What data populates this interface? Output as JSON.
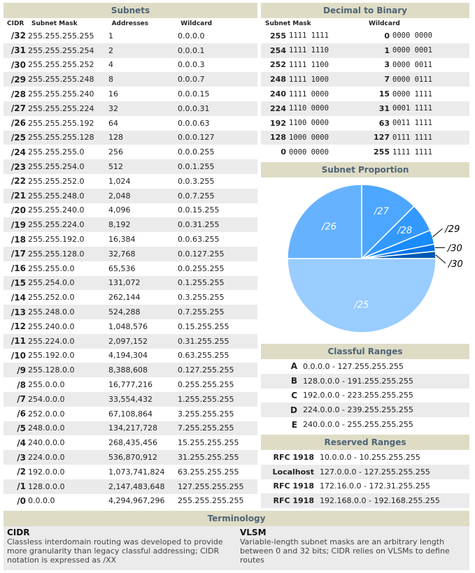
{
  "subnets": {
    "title": "Subnets",
    "headers": {
      "cidr": "CIDR",
      "mask": "Subnet Mask",
      "addresses": "Addresses",
      "wildcard": "Wildcard"
    },
    "rows": [
      {
        "cidr": "/32",
        "mask": "255.255.255.255",
        "addresses": "1",
        "wildcard": "0.0.0.0"
      },
      {
        "cidr": "/31",
        "mask": "255.255.255.254",
        "addresses": "2",
        "wildcard": "0.0.0.1"
      },
      {
        "cidr": "/30",
        "mask": "255.255.255.252",
        "addresses": "4",
        "wildcard": "0.0.0.3"
      },
      {
        "cidr": "/29",
        "mask": "255.255.255.248",
        "addresses": "8",
        "wildcard": "0.0.0.7"
      },
      {
        "cidr": "/28",
        "mask": "255.255.255.240",
        "addresses": "16",
        "wildcard": "0.0.0.15"
      },
      {
        "cidr": "/27",
        "mask": "255.255.255.224",
        "addresses": "32",
        "wildcard": "0.0.0.31"
      },
      {
        "cidr": "/26",
        "mask": "255.255.255.192",
        "addresses": "64",
        "wildcard": "0.0.0.63"
      },
      {
        "cidr": "/25",
        "mask": "255.255.255.128",
        "addresses": "128",
        "wildcard": "0.0.0.127"
      },
      {
        "cidr": "/24",
        "mask": "255.255.255.0",
        "addresses": "256",
        "wildcard": "0.0.0.255"
      },
      {
        "cidr": "/23",
        "mask": "255.255.254.0",
        "addresses": "512",
        "wildcard": "0.0.1.255"
      },
      {
        "cidr": "/22",
        "mask": "255.255.252.0",
        "addresses": "1,024",
        "wildcard": "0.0.3.255"
      },
      {
        "cidr": "/21",
        "mask": "255.255.248.0",
        "addresses": "2,048",
        "wildcard": "0.0.7.255"
      },
      {
        "cidr": "/20",
        "mask": "255.255.240.0",
        "addresses": "4,096",
        "wildcard": "0.0.15.255"
      },
      {
        "cidr": "/19",
        "mask": "255.255.224.0",
        "addresses": "8,192",
        "wildcard": "0.0.31.255"
      },
      {
        "cidr": "/18",
        "mask": "255.255.192.0",
        "addresses": "16,384",
        "wildcard": "0.0.63.255"
      },
      {
        "cidr": "/17",
        "mask": "255.255.128.0",
        "addresses": "32,768",
        "wildcard": "0.0.127.255"
      },
      {
        "cidr": "/16",
        "mask": "255.255.0.0",
        "addresses": "65,536",
        "wildcard": "0.0.255.255"
      },
      {
        "cidr": "/15",
        "mask": "255.254.0.0",
        "addresses": "131,072",
        "wildcard": "0.1.255.255"
      },
      {
        "cidr": "/14",
        "mask": "255.252.0.0",
        "addresses": "262,144",
        "wildcard": "0.3.255.255"
      },
      {
        "cidr": "/13",
        "mask": "255.248.0.0",
        "addresses": "524,288",
        "wildcard": "0.7.255.255"
      },
      {
        "cidr": "/12",
        "mask": "255.240.0.0",
        "addresses": "1,048,576",
        "wildcard": "0.15.255.255"
      },
      {
        "cidr": "/11",
        "mask": "255.224.0.0",
        "addresses": "2,097,152",
        "wildcard": "0.31.255.255"
      },
      {
        "cidr": "/10",
        "mask": "255.192.0.0",
        "addresses": "4,194,304",
        "wildcard": "0.63.255.255"
      },
      {
        "cidr": "/9",
        "mask": "255.128.0.0",
        "addresses": "8,388,608",
        "wildcard": "0.127.255.255"
      },
      {
        "cidr": "/8",
        "mask": "255.0.0.0",
        "addresses": "16,777,216",
        "wildcard": "0.255.255.255"
      },
      {
        "cidr": "/7",
        "mask": "254.0.0.0",
        "addresses": "33,554,432",
        "wildcard": "1.255.255.255"
      },
      {
        "cidr": "/6",
        "mask": "252.0.0.0",
        "addresses": "67,108,864",
        "wildcard": "3.255.255.255"
      },
      {
        "cidr": "/5",
        "mask": "248.0.0.0",
        "addresses": "134,217,728",
        "wildcard": "7.255.255.255"
      },
      {
        "cidr": "/4",
        "mask": "240.0.0.0",
        "addresses": "268,435,456",
        "wildcard": "15.255.255.255"
      },
      {
        "cidr": "/3",
        "mask": "224.0.0.0",
        "addresses": "536,870,912",
        "wildcard": "31.255.255.255"
      },
      {
        "cidr": "/2",
        "mask": "192.0.0.0",
        "addresses": "1,073,741,824",
        "wildcard": "63.255.255.255"
      },
      {
        "cidr": "/1",
        "mask": "128.0.0.0",
        "addresses": "2,147,483,648",
        "wildcard": "127.255.255.255"
      },
      {
        "cidr": "/0",
        "mask": "0.0.0.0",
        "addresses": "4,294,967,296",
        "wildcard": "255.255.255.255"
      }
    ]
  },
  "dec2bin": {
    "title": "Decimal to Binary",
    "headers": {
      "mask": "Subnet Mask",
      "wildcard": "Wildcard"
    },
    "rows": [
      {
        "mask_dec": "255",
        "mask_bin": "1111 1111",
        "wild_dec": "0",
        "wild_bin": "0000 0000"
      },
      {
        "mask_dec": "254",
        "mask_bin": "1111 1110",
        "wild_dec": "1",
        "wild_bin": "0000 0001"
      },
      {
        "mask_dec": "252",
        "mask_bin": "1111 1100",
        "wild_dec": "3",
        "wild_bin": "0000 0011"
      },
      {
        "mask_dec": "248",
        "mask_bin": "1111 1000",
        "wild_dec": "7",
        "wild_bin": "0000 0111"
      },
      {
        "mask_dec": "240",
        "mask_bin": "1111 0000",
        "wild_dec": "15",
        "wild_bin": "0000 1111"
      },
      {
        "mask_dec": "224",
        "mask_bin": "1110 0000",
        "wild_dec": "31",
        "wild_bin": "0001 1111"
      },
      {
        "mask_dec": "192",
        "mask_bin": "1100 0000",
        "wild_dec": "63",
        "wild_bin": "0011 1111"
      },
      {
        "mask_dec": "128",
        "mask_bin": "1000 0000",
        "wild_dec": "127",
        "wild_bin": "0111 1111"
      },
      {
        "mask_dec": "0",
        "mask_bin": "0000 0000",
        "wild_dec": "255",
        "wild_bin": "1111 1111"
      }
    ]
  },
  "proportion": {
    "title": "Subnet Proportion"
  },
  "chart_data": {
    "type": "pie",
    "title": "Subnet Proportion",
    "categories": [
      "/25",
      "/26",
      "/27",
      "/28",
      "/29",
      "/30",
      "/30"
    ],
    "values": [
      128,
      64,
      32,
      16,
      8,
      4,
      4
    ],
    "colors": [
      "#99ccff",
      "#66b2ff",
      "#4da6ff",
      "#3399ff",
      "#1a8cff",
      "#0073e6",
      "#0059b3"
    ]
  },
  "classful": {
    "title": "Classful Ranges",
    "rows": [
      {
        "label": "A",
        "range": "0.0.0.0 - 127.255.255.255"
      },
      {
        "label": "B",
        "range": "128.0.0.0 - 191.255.255.255"
      },
      {
        "label": "C",
        "range": "192.0.0.0 - 223.255.255.255"
      },
      {
        "label": "D",
        "range": "224.0.0.0 - 239.255.255.255"
      },
      {
        "label": "E",
        "range": "240.0.0.0 - 255.255.255.255"
      }
    ]
  },
  "reserved": {
    "title": "Reserved Ranges",
    "rows": [
      {
        "label": "RFC 1918",
        "range": "10.0.0.0 - 10.255.255.255"
      },
      {
        "label": "Localhost",
        "range": "127.0.0.0 - 127.255.255.255"
      },
      {
        "label": "RFC 1918",
        "range": "172.16.0.0 - 172.31.255.255"
      },
      {
        "label": "RFC 1918",
        "range": "192.168.0.0 - 192.168.255.255"
      }
    ]
  },
  "terminology": {
    "title": "Terminology",
    "cidr_title": "CIDR",
    "cidr_text": "Classless interdomain routing was developed to provide more granularity than legacy classful addressing; CIDR notation is expressed as /XX",
    "vlsm_title": "VLSM",
    "vlsm_text": "Variable-length subnet masks are an arbitrary length between 0 and 32 bits; CIDR relies on VLSMs to define routes"
  }
}
